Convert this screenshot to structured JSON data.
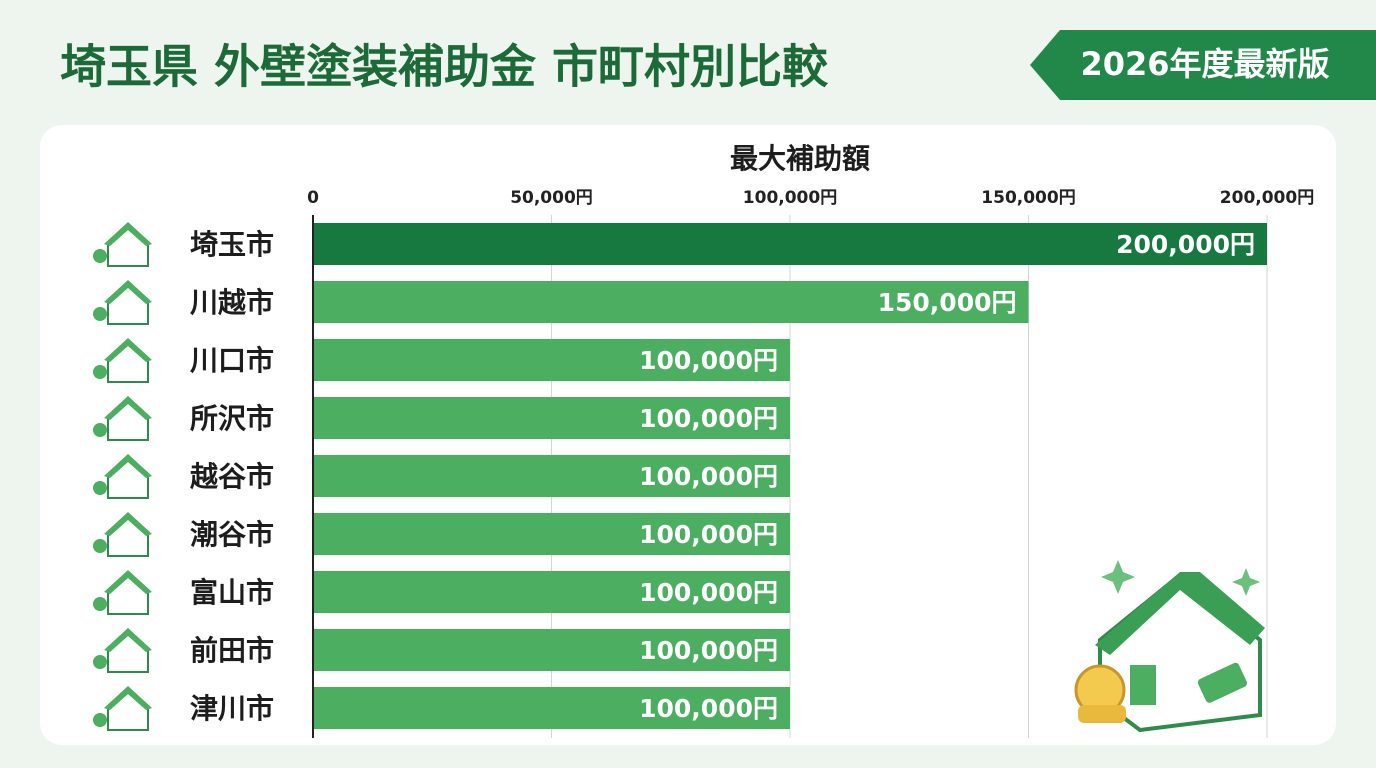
{
  "chart_data": {
    "type": "bar",
    "orientation": "horizontal",
    "title": "埼玉県 外壁塗装補助金 市町村別比較",
    "badge": "2026年度最新版",
    "axis_title": "最大補助額",
    "categories": [
      "埼玉市",
      "川越市",
      "川口市",
      "所沢市",
      "越谷市",
      "潮谷市",
      "富山市",
      "前田市",
      "津川市"
    ],
    "values": [
      200000,
      150000,
      100000,
      100000,
      100000,
      100000,
      100000,
      100000,
      100000
    ],
    "value_labels": [
      "200,000円",
      "150,000円",
      "100,000円",
      "100,000円",
      "100,000円",
      "100,000円",
      "100,000円",
      "100,000円",
      "100,000円"
    ],
    "colors": [
      "#17793f",
      "#4cae60",
      "#4cae60",
      "#4cae60",
      "#4cae60",
      "#4cae60",
      "#4cae60",
      "#4cae60",
      "#4cae60"
    ],
    "xlim": [
      0,
      200000
    ],
    "xticks": [
      0,
      {
        "value": 50000,
        "label": "50,000円"
      },
      {
        "value": 100000,
        "label": "100,000円"
      },
      {
        "value": 150000,
        "label": "150,000円"
      },
      {
        "value": 200000,
        "label": "200,000円"
      }
    ],
    "grid": true
  }
}
